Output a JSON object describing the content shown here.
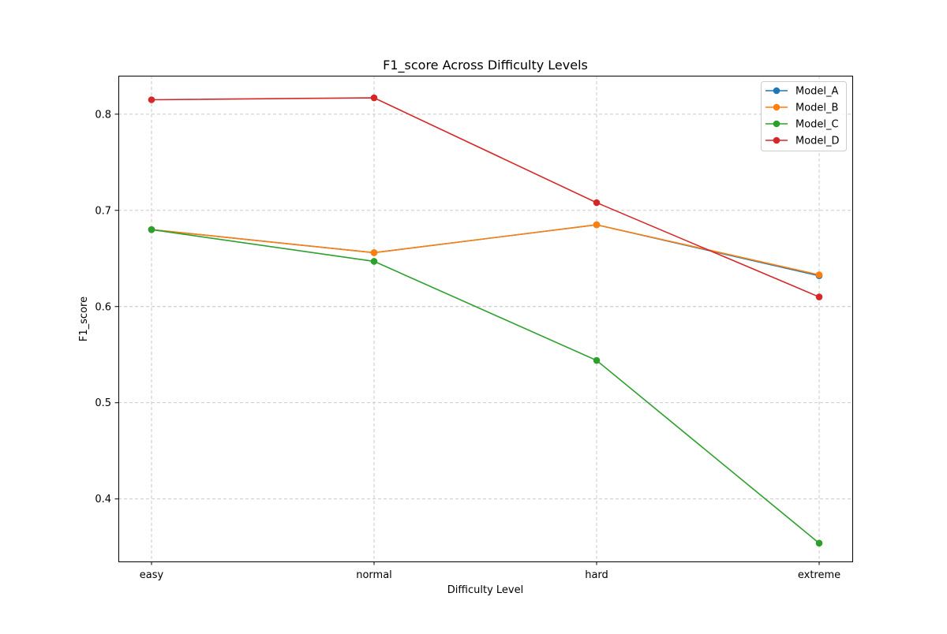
{
  "chart_data": {
    "type": "line",
    "title": "F1_score Across Difficulty Levels",
    "xlabel": "Difficulty Level",
    "ylabel": "F1_score",
    "categories": [
      "easy",
      "normal",
      "hard",
      "extreme"
    ],
    "ylim": [
      0.335,
      0.84
    ],
    "yticks": [
      0.4,
      0.5,
      0.6,
      0.7,
      0.8
    ],
    "ytick_labels": [
      "0.4",
      "0.5",
      "0.6",
      "0.7",
      "0.8"
    ],
    "grid": true,
    "legend_position": "top-right",
    "series": [
      {
        "name": "Model_A",
        "color": "#1f77b4",
        "marker": "circle",
        "values": [
          0.68,
          0.656,
          0.685,
          0.632
        ]
      },
      {
        "name": "Model_B",
        "color": "#ff7f0e",
        "marker": "circle",
        "values": [
          0.68,
          0.656,
          0.685,
          0.633
        ]
      },
      {
        "name": "Model_C",
        "color": "#2ca02c",
        "marker": "circle",
        "values": [
          0.68,
          0.647,
          0.544,
          0.354
        ]
      },
      {
        "name": "Model_D",
        "color": "#d62728",
        "marker": "circle",
        "values": [
          0.815,
          0.817,
          0.708,
          0.61
        ]
      }
    ]
  }
}
